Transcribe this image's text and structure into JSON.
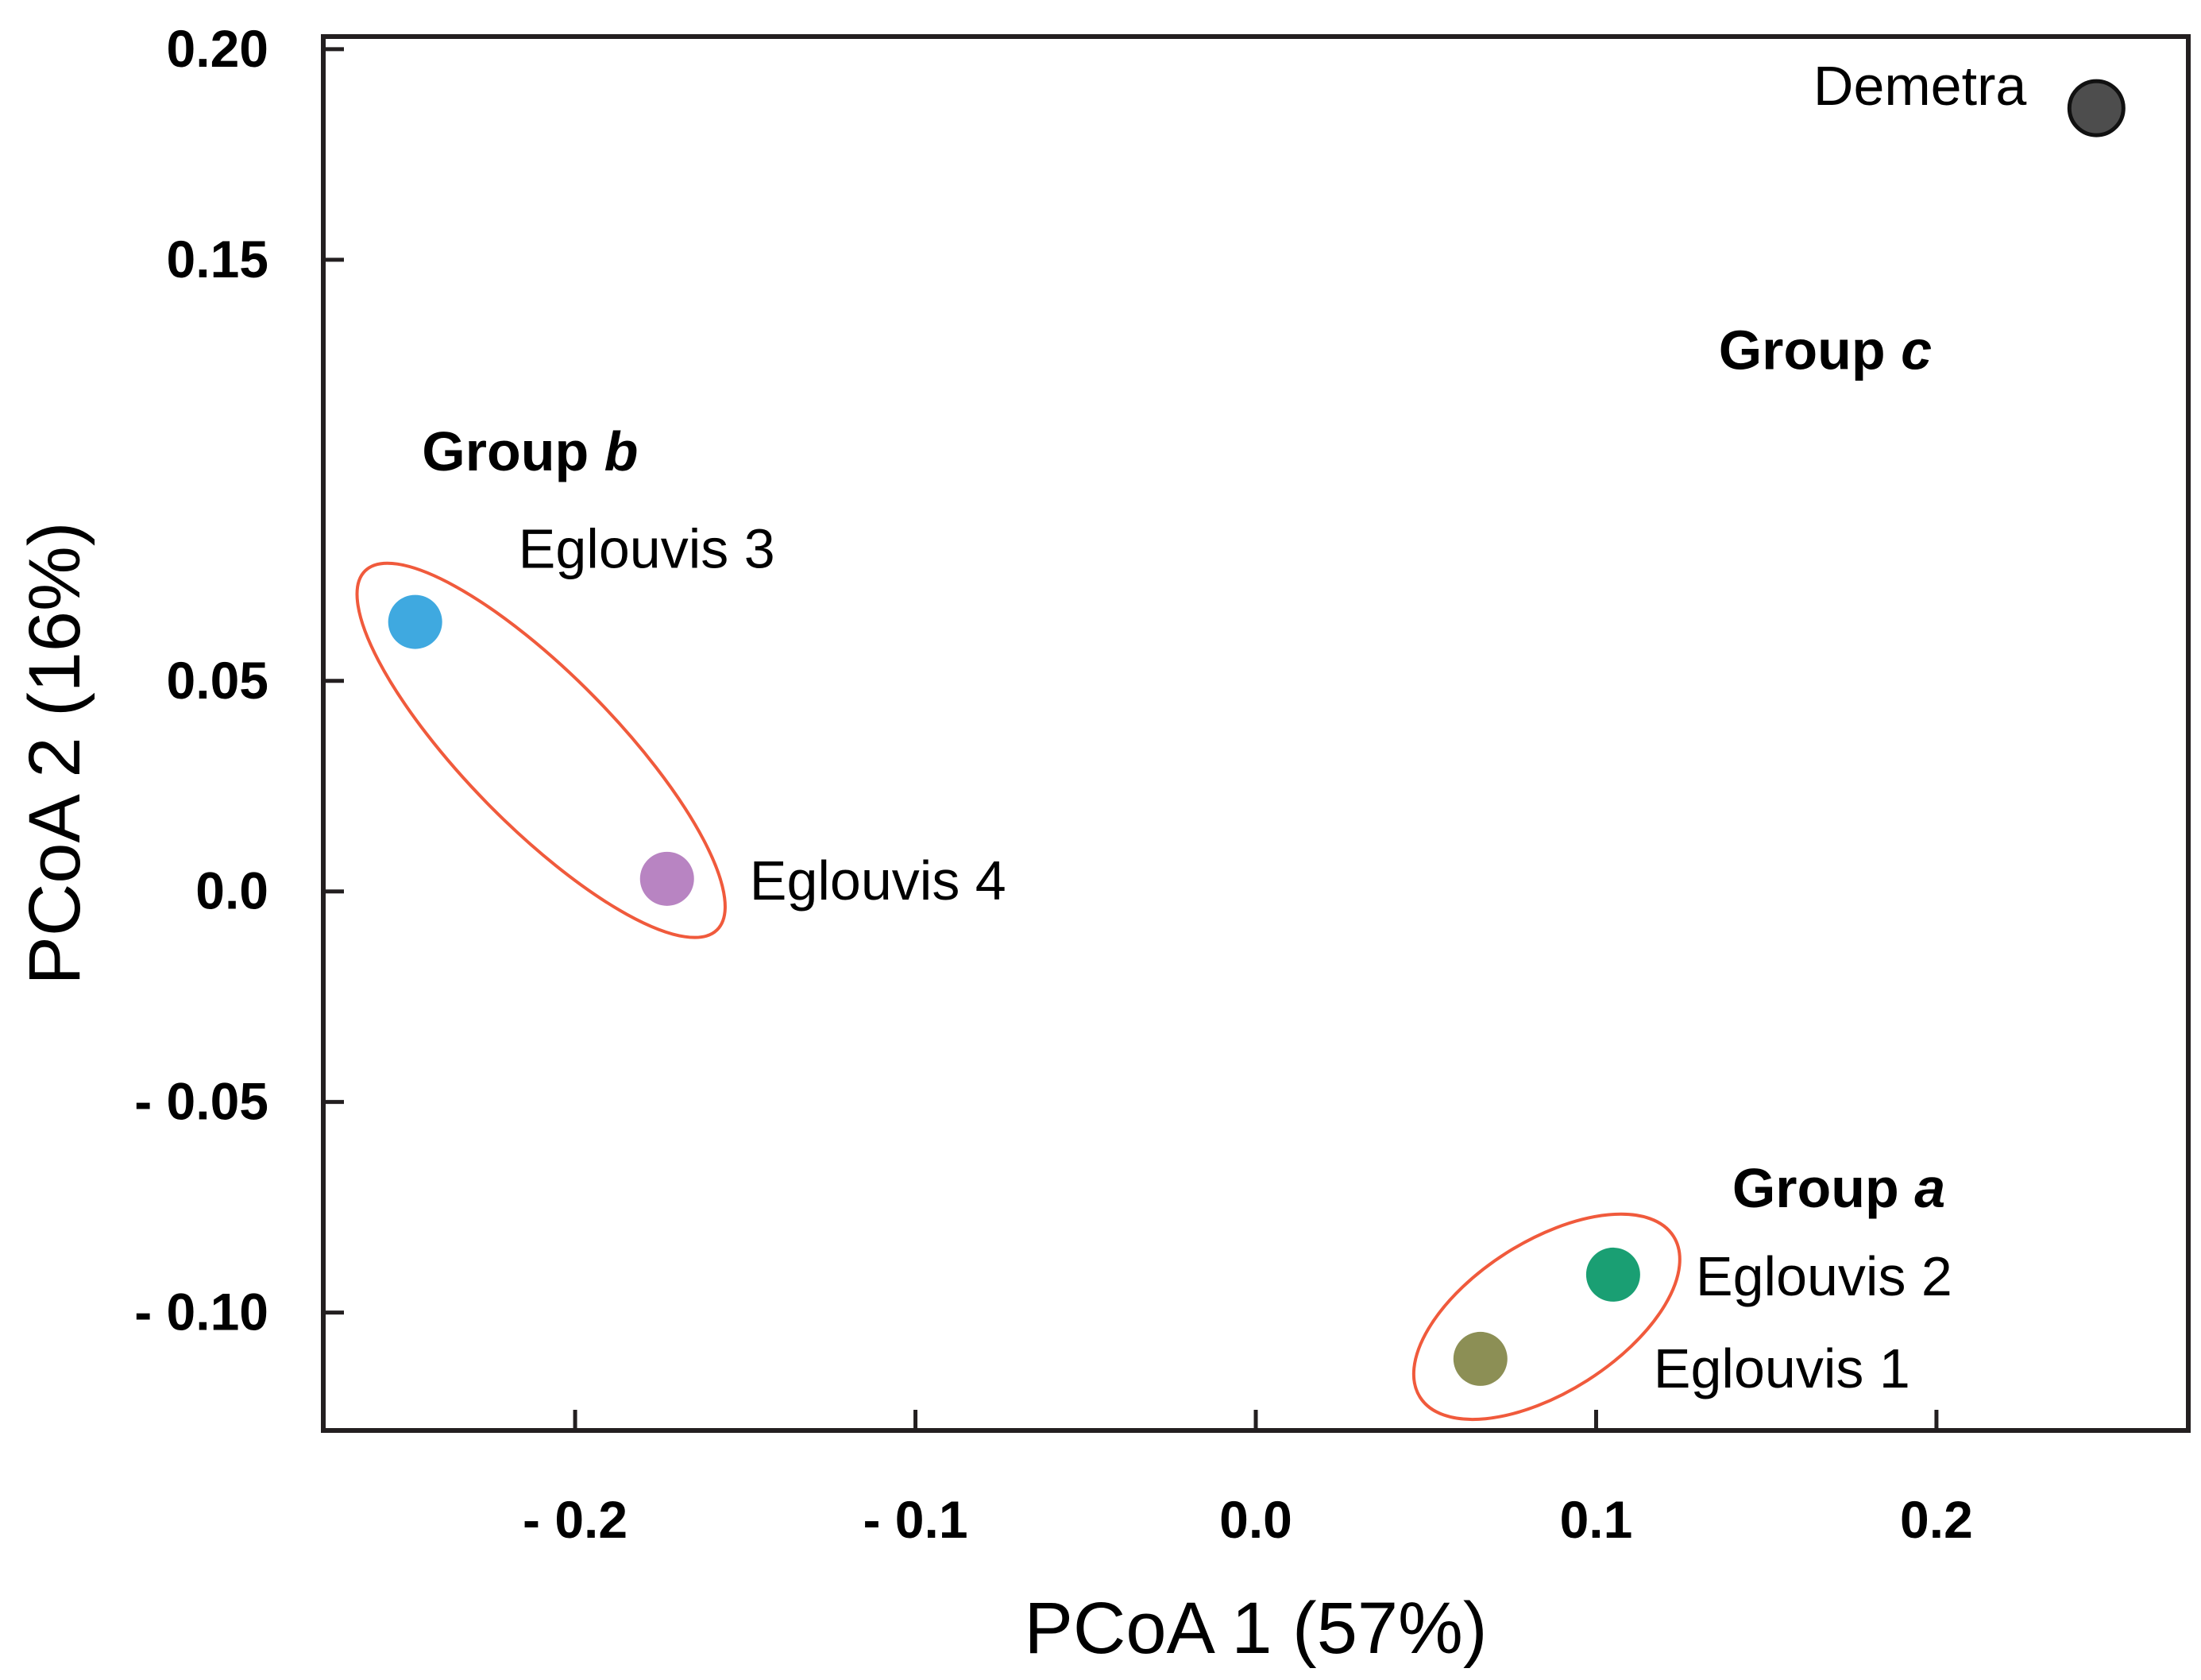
{
  "chart_data": {
    "type": "scatter",
    "title": "",
    "xlabel": "PCoA 1 (57%)",
    "ylabel": "PCoA 2 (16%)",
    "xlim": [
      -0.274,
      0.274
    ],
    "ylim": [
      -0.128,
      0.203
    ],
    "xticks": [
      {
        "value": -0.2,
        "label": "- 0.2"
      },
      {
        "value": -0.1,
        "label": "- 0.1"
      },
      {
        "value": 0.0,
        "label": "0.0"
      },
      {
        "value": 0.1,
        "label": "0.1"
      },
      {
        "value": 0.2,
        "label": "0.2"
      }
    ],
    "yticks": [
      {
        "value": 0.2,
        "label": "0.20"
      },
      {
        "value": 0.15,
        "label": "0.15"
      },
      {
        "value": 0.05,
        "label": "0.05"
      },
      {
        "value": 0.0,
        "label": "0.0"
      },
      {
        "value": -0.05,
        "label": "- 0.05"
      },
      {
        "value": -0.1,
        "label": "- 0.10"
      }
    ],
    "points": [
      {
        "name": "Demetra",
        "x": 0.247,
        "y": 0.186,
        "color": "#4d4d4d",
        "label_side": "left"
      },
      {
        "name": "Eglouvis 3",
        "x": -0.247,
        "y": 0.064,
        "color": "#3fa9e0",
        "label_side": "upper-right"
      },
      {
        "name": "Eglouvis 4",
        "x": -0.173,
        "y": 0.003,
        "color": "#b884c2",
        "label_side": "right"
      },
      {
        "name": "Eglouvis 2",
        "x": 0.105,
        "y": -0.091,
        "color": "#1a9f73",
        "label_side": "right"
      },
      {
        "name": "Eglouvis 1",
        "x": 0.066,
        "y": -0.111,
        "color": "#8c8f55",
        "label_side": "lower-right"
      }
    ],
    "groups": [
      {
        "prefix": "Group ",
        "letter": "b",
        "x": -0.245,
        "y": 0.1,
        "members": [
          "Eglouvis 3",
          "Eglouvis 4"
        ],
        "ellipse": true
      },
      {
        "prefix": "Group ",
        "letter": "a",
        "x": 0.14,
        "y": -0.075,
        "members": [
          "Eglouvis 1",
          "Eglouvis 2"
        ],
        "ellipse": true
      },
      {
        "prefix": "Group ",
        "letter": "c",
        "x": 0.136,
        "y": 0.124,
        "members": [
          "Demetra"
        ],
        "ellipse": false
      }
    ],
    "ellipse_color": "#f05a3c",
    "grid": false,
    "legend": "none"
  }
}
